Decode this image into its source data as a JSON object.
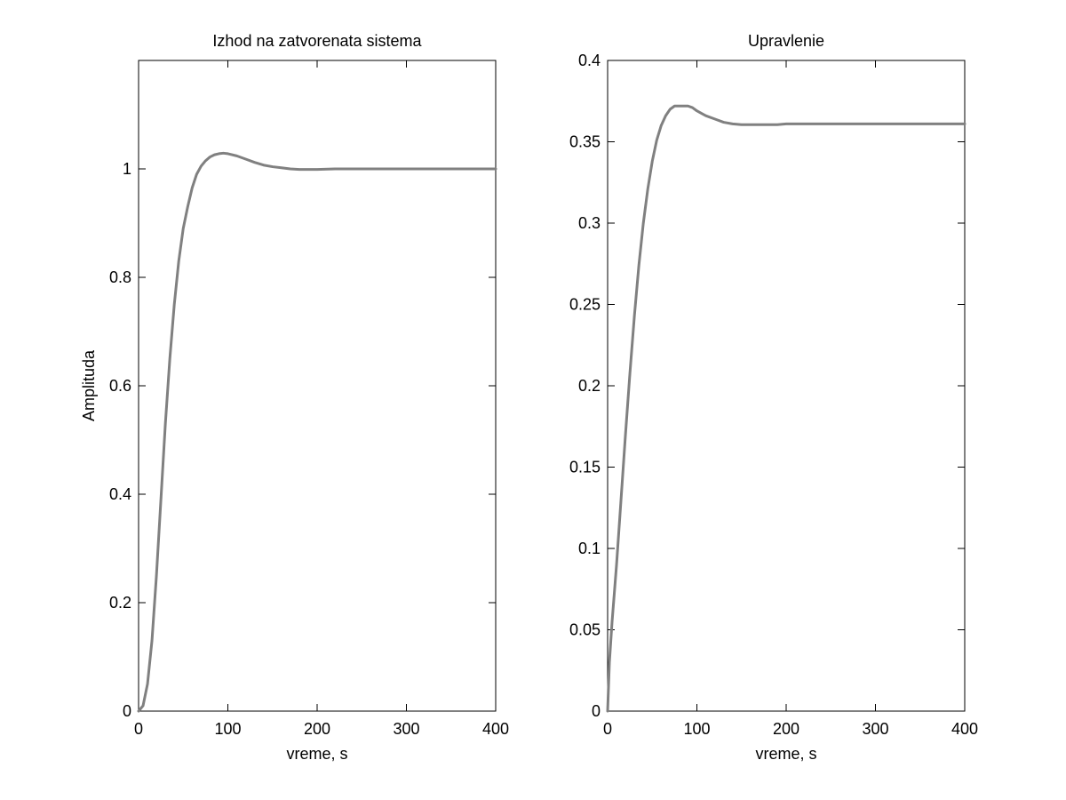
{
  "figure": {
    "background": "#ffffff",
    "line_color": "#808080"
  },
  "chart_data": [
    {
      "type": "line",
      "title": "Izhod na zatvorenata sistema",
      "xlabel": "vreme, s",
      "ylabel": "Amplituda",
      "xlim": [
        0,
        400
      ],
      "ylim": [
        0,
        1.2
      ],
      "xticks": [
        0,
        100,
        200,
        300,
        400
      ],
      "xtick_labels": [
        "0",
        "100",
        "200",
        "300",
        "400"
      ],
      "yticks": [
        0,
        0.2,
        0.4,
        0.6,
        0.8,
        1
      ],
      "ytick_labels": [
        "0",
        "0.2",
        "0.4",
        "0.6",
        "0.8",
        "1"
      ],
      "grid": false,
      "series": [
        {
          "color": "#808080",
          "x": [
            0,
            5,
            10,
            15,
            20,
            25,
            30,
            35,
            40,
            45,
            50,
            55,
            60,
            65,
            70,
            75,
            80,
            85,
            90,
            95,
            100,
            110,
            120,
            130,
            140,
            150,
            160,
            170,
            180,
            190,
            200,
            220,
            250,
            300,
            350,
            400
          ],
          "y": [
            0,
            0.01,
            0.05,
            0.13,
            0.25,
            0.39,
            0.53,
            0.65,
            0.75,
            0.83,
            0.89,
            0.93,
            0.965,
            0.99,
            1.005,
            1.015,
            1.022,
            1.026,
            1.028,
            1.029,
            1.028,
            1.024,
            1.018,
            1.012,
            1.007,
            1.004,
            1.002,
            1.0,
            0.999,
            0.999,
            0.999,
            1.0,
            1.0,
            1.0,
            1.0,
            1.0
          ]
        }
      ]
    },
    {
      "type": "line",
      "title": "Upravlenie",
      "xlabel": "vreme, s",
      "ylabel": "",
      "xlim": [
        0,
        400
      ],
      "ylim": [
        0,
        0.4
      ],
      "xticks": [
        0,
        100,
        200,
        300,
        400
      ],
      "xtick_labels": [
        "0",
        "100",
        "200",
        "300",
        "400"
      ],
      "yticks": [
        0,
        0.05,
        0.1,
        0.15,
        0.2,
        0.25,
        0.3,
        0.35,
        0.4
      ],
      "ytick_labels": [
        "0",
        "0.05",
        "0.1",
        "0.15",
        "0.2",
        "0.25",
        "0.3",
        "0.35",
        "0.4"
      ],
      "grid": false,
      "series": [
        {
          "color": "#808080",
          "x": [
            0,
            2,
            5,
            10,
            15,
            20,
            25,
            30,
            35,
            40,
            45,
            50,
            55,
            60,
            65,
            70,
            75,
            80,
            85,
            90,
            95,
            100,
            110,
            120,
            130,
            140,
            150,
            160,
            170,
            180,
            190,
            200,
            250,
            300,
            350,
            400
          ],
          "y": [
            0,
            0.03,
            0.055,
            0.09,
            0.13,
            0.17,
            0.208,
            0.243,
            0.274,
            0.3,
            0.321,
            0.338,
            0.351,
            0.36,
            0.366,
            0.37,
            0.372,
            0.372,
            0.372,
            0.372,
            0.371,
            0.369,
            0.366,
            0.364,
            0.362,
            0.361,
            0.3605,
            0.3605,
            0.3605,
            0.3605,
            0.3605,
            0.361,
            0.361,
            0.361,
            0.361,
            0.361
          ]
        }
      ]
    }
  ]
}
